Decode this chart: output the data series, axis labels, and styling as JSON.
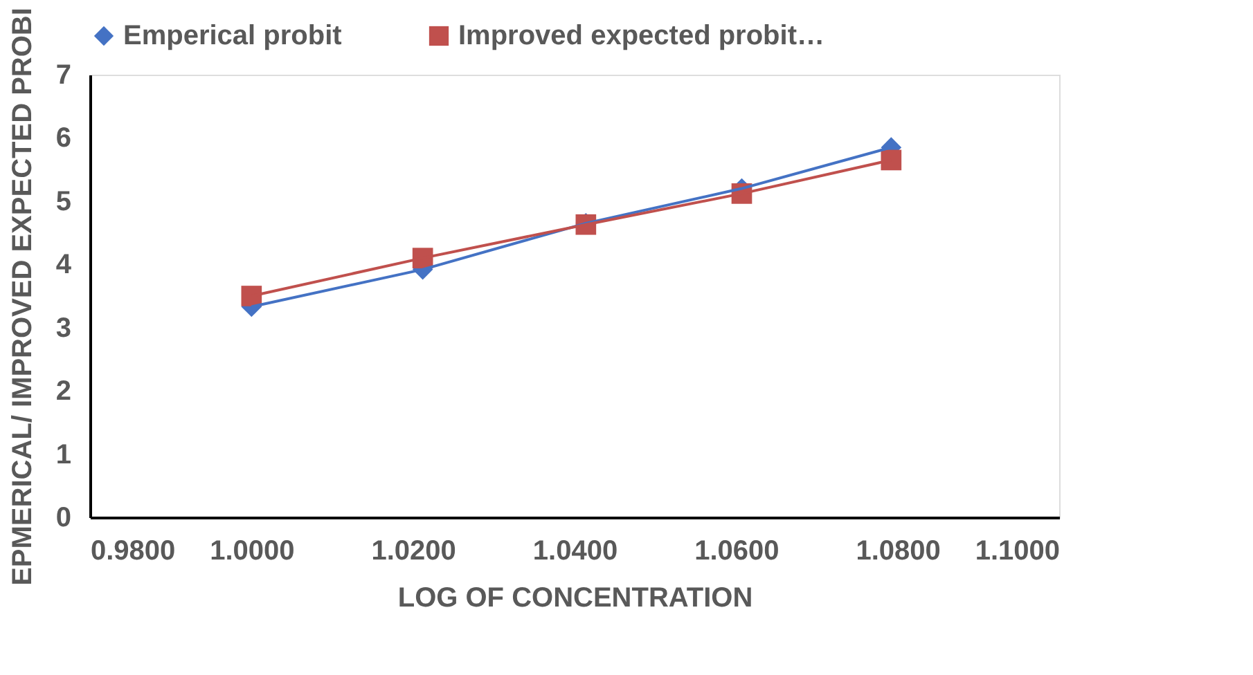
{
  "chart_data": {
    "type": "line",
    "xlabel": "LOG OF CONCENTRATION",
    "ylabel": "EPMERICAL/ IMPROVED EXPECTED PROBI",
    "x": [
      1.0,
      1.0212,
      1.0414,
      1.0607,
      1.0792
    ],
    "series": [
      {
        "name": "Emperical probit",
        "color": "#4472c4",
        "marker": "diamond",
        "values": [
          3.33,
          3.92,
          4.65,
          5.2,
          5.85
        ]
      },
      {
        "name": "Improved expected probit…",
        "color": "#c0504d",
        "marker": "square",
        "values": [
          3.5,
          4.1,
          4.63,
          5.12,
          5.65
        ]
      }
    ],
    "xlim": [
      0.98,
      1.1
    ],
    "xticks": [
      {
        "value": 0.98,
        "label": "0.9800"
      },
      {
        "value": 1.0,
        "label": "1.0000"
      },
      {
        "value": 1.02,
        "label": "1.0200"
      },
      {
        "value": 1.04,
        "label": "1.0400"
      },
      {
        "value": 1.06,
        "label": "1.0600"
      },
      {
        "value": 1.08,
        "label": "1.0800"
      },
      {
        "value": 1.1,
        "label": "1.1000"
      }
    ],
    "ylim": [
      0,
      7
    ],
    "yticks": [
      0,
      1,
      2,
      3,
      4,
      5,
      6,
      7
    ],
    "grid": false,
    "legend": "top",
    "line_style": "solid"
  }
}
